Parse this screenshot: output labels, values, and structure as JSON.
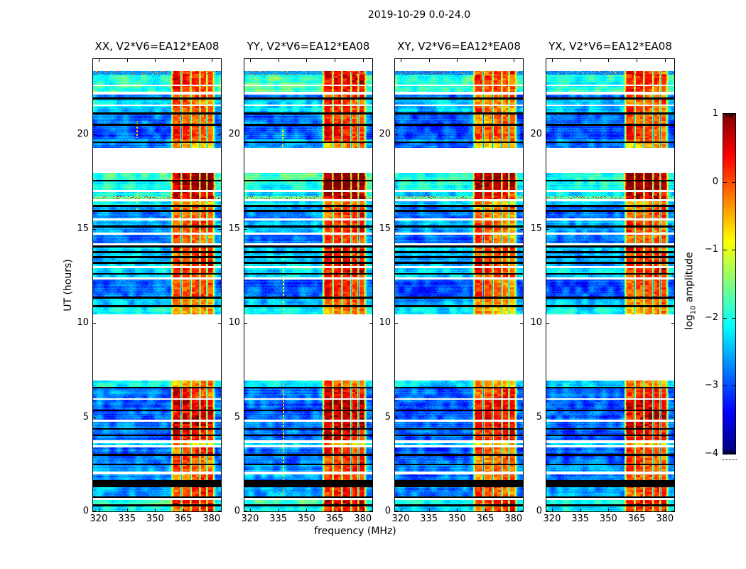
{
  "chart_data": {
    "type": "heatmap",
    "title": "2019-10-29 0.0-24.0",
    "xlabel": "frequency (MHz)",
    "ylabel": "UT (hours)",
    "xlim": [
      317,
      385
    ],
    "ylim": [
      0,
      24
    ],
    "xticks": [
      320,
      335,
      350,
      365,
      380
    ],
    "yticks": [
      0,
      5,
      10,
      15,
      20
    ],
    "grid": false,
    "colorbar": {
      "label_pre": "log",
      "label_sub": "10",
      "label_post": " amplitude",
      "vmin": -4,
      "vmax": 1,
      "ticks": [
        1,
        0,
        -1,
        -2,
        -3,
        -4
      ],
      "tick_labels": [
        "1",
        "0",
        "−1",
        "−2",
        "−3",
        "−4"
      ],
      "colormap": "jet",
      "top_color": "#800000",
      "bottom_color": "#000080"
    },
    "panels": [
      {
        "title": "XX, V2*V6=EA12*EA08",
        "seed": 11,
        "band_bias": 0.0,
        "bg_bias": 0.0,
        "artifacts": [
          {
            "f": 340.5,
            "t0": 19.8,
            "t1": 20.7,
            "v": -0.6
          },
          {
            "f": 340.5,
            "t0": 15.9,
            "t1": 16.9,
            "v": -1.0
          }
        ]
      },
      {
        "title": "YY, V2*V6=EA12*EA08",
        "seed": 27,
        "band_bias": 0.18,
        "bg_bias": 0.02,
        "artifacts": [
          {
            "f": 337.8,
            "t0": 0.7,
            "t1": 6.9,
            "v": -0.6
          },
          {
            "f": 337.8,
            "t0": 10.5,
            "t1": 13.4,
            "v": -0.9
          },
          {
            "f": 337.5,
            "t0": 19.3,
            "t1": 20.3,
            "v": -0.9
          }
        ]
      },
      {
        "title": "XY, V2*V6=EA12*EA08",
        "seed": 43,
        "band_bias": -0.12,
        "bg_bias": -0.1,
        "artifacts": []
      },
      {
        "title": "YX, V2*V6=EA12*EA08",
        "seed": 59,
        "band_bias": 0.0,
        "bg_bias": -0.08,
        "artifacts": []
      }
    ],
    "rfi_band": {
      "f0": 359.3,
      "f1": 380.9,
      "tail_f1": 382.3,
      "separators": [
        364.0,
        368.9,
        373.8,
        377.6
      ]
    },
    "time_segments_comment": "[t_start_hr, t_end_hr, kind, bg_level, band_level]; kind: d=data, s=speckled data, b=black flagged row, w=white thin gap, g=white data gap; levels are log10 amplitude",
    "time_segments": [
      [
        0.0,
        0.28,
        "d",
        -2.1,
        0.1
      ],
      [
        0.28,
        0.36,
        "b",
        0,
        0
      ],
      [
        0.36,
        0.62,
        "d",
        -1.95,
        0.35
      ],
      [
        0.62,
        0.7,
        "w",
        0,
        0
      ],
      [
        0.7,
        0.78,
        "b",
        0,
        0
      ],
      [
        0.78,
        1.3,
        "d",
        -2.6,
        0.1
      ],
      [
        1.3,
        1.66,
        "b",
        0,
        0
      ],
      [
        1.66,
        1.98,
        "d",
        -2.7,
        -0.1
      ],
      [
        1.98,
        2.12,
        "w",
        0,
        0
      ],
      [
        2.12,
        2.44,
        "d",
        -2.6,
        0.0
      ],
      [
        2.44,
        2.54,
        "b",
        0,
        0
      ],
      [
        2.54,
        2.96,
        "d",
        -2.85,
        -0.05
      ],
      [
        2.96,
        3.06,
        "b",
        0,
        0
      ],
      [
        3.06,
        3.38,
        "d",
        -2.85,
        0.0
      ],
      [
        3.38,
        3.5,
        "w",
        0,
        0
      ],
      [
        3.5,
        3.62,
        "d",
        -2.2,
        -0.5
      ],
      [
        3.62,
        3.76,
        "w",
        0,
        0
      ],
      [
        3.76,
        4.0,
        "d",
        -2.85,
        0.3
      ],
      [
        4.0,
        4.08,
        "b",
        0,
        0
      ],
      [
        4.08,
        4.33,
        "d",
        -2.85,
        0.35
      ],
      [
        4.33,
        4.43,
        "b",
        0,
        0
      ],
      [
        4.43,
        4.74,
        "d",
        -2.8,
        0.45
      ],
      [
        4.74,
        4.88,
        "w",
        0,
        0
      ],
      [
        4.88,
        5.31,
        "d",
        -2.85,
        0.5
      ],
      [
        5.31,
        5.41,
        "b",
        0,
        0
      ],
      [
        5.41,
        5.91,
        "d",
        -2.85,
        0.45
      ],
      [
        5.91,
        6.01,
        "w",
        0,
        0
      ],
      [
        6.01,
        6.51,
        "d",
        -2.8,
        0.2
      ],
      [
        6.51,
        6.61,
        "b",
        0,
        0
      ],
      [
        6.61,
        6.94,
        "d",
        -2.15,
        -0.3
      ],
      [
        6.94,
        10.45,
        "g",
        0,
        0
      ],
      [
        10.45,
        10.83,
        "d",
        -2.1,
        -0.4
      ],
      [
        10.83,
        10.94,
        "b",
        0,
        0
      ],
      [
        10.94,
        11.3,
        "d",
        -2.4,
        -0.2
      ],
      [
        11.3,
        11.41,
        "b",
        0,
        0
      ],
      [
        11.41,
        12.3,
        "d",
        -2.9,
        0.0
      ],
      [
        12.3,
        12.42,
        "w",
        0,
        0
      ],
      [
        12.42,
        12.55,
        "d",
        -2.3,
        0.1
      ],
      [
        12.55,
        12.66,
        "b",
        0,
        0
      ],
      [
        12.66,
        12.9,
        "d",
        -2.2,
        0.25
      ],
      [
        12.9,
        13.02,
        "w",
        0,
        0
      ],
      [
        13.02,
        13.14,
        "d",
        -2.3,
        0.2
      ],
      [
        13.14,
        13.24,
        "b",
        0,
        0
      ],
      [
        13.24,
        13.42,
        "d",
        -2.4,
        0.15
      ],
      [
        13.42,
        13.53,
        "b",
        0,
        0
      ],
      [
        13.53,
        13.7,
        "d",
        -2.4,
        0.1
      ],
      [
        13.7,
        13.81,
        "b",
        0,
        0
      ],
      [
        13.81,
        13.99,
        "d",
        -2.3,
        0.2
      ],
      [
        13.99,
        14.11,
        "b",
        0,
        0
      ],
      [
        14.11,
        14.22,
        "w",
        0,
        0
      ],
      [
        14.22,
        14.68,
        "d",
        -2.8,
        -0.1
      ],
      [
        14.68,
        14.79,
        "w",
        0,
        0
      ],
      [
        14.79,
        15.06,
        "d",
        -2.5,
        0.0
      ],
      [
        15.06,
        15.16,
        "b",
        0,
        0
      ],
      [
        15.16,
        15.45,
        "d",
        -2.4,
        0.0
      ],
      [
        15.45,
        15.56,
        "w",
        0,
        0
      ],
      [
        15.56,
        15.9,
        "d",
        -2.75,
        -0.1
      ],
      [
        15.9,
        16.0,
        "b",
        0,
        0
      ],
      [
        16.0,
        16.16,
        "d",
        -2.7,
        -0.1
      ],
      [
        16.16,
        16.26,
        "b",
        0,
        0
      ],
      [
        16.26,
        16.46,
        "d",
        -2.2,
        -0.4
      ],
      [
        16.46,
        16.55,
        "w",
        0,
        0
      ],
      [
        16.55,
        16.7,
        "s",
        -1.6,
        0.55
      ],
      [
        16.7,
        16.94,
        "d",
        -2.2,
        0.5
      ],
      [
        16.94,
        17.06,
        "w",
        0,
        0
      ],
      [
        17.06,
        17.5,
        "d",
        -2.0,
        0.9
      ],
      [
        17.5,
        17.6,
        "b",
        0,
        0
      ],
      [
        17.6,
        17.95,
        "d",
        -1.9,
        0.88
      ],
      [
        17.95,
        19.3,
        "g",
        0,
        0
      ],
      [
        19.3,
        19.55,
        "d",
        -2.7,
        -0.5
      ],
      [
        19.55,
        19.64,
        "b",
        0,
        0
      ],
      [
        19.64,
        19.72,
        "d",
        -2.4,
        -0.2
      ],
      [
        19.72,
        20.45,
        "d",
        -2.95,
        0.1
      ],
      [
        20.45,
        20.56,
        "b",
        0,
        0
      ],
      [
        20.56,
        21.05,
        "d",
        -2.8,
        -0.1
      ],
      [
        21.05,
        21.16,
        "b",
        0,
        0
      ],
      [
        21.16,
        21.5,
        "d",
        -2.35,
        0.0
      ],
      [
        21.5,
        21.57,
        "w",
        0,
        0
      ],
      [
        21.57,
        21.85,
        "d",
        -2.35,
        -0.1
      ],
      [
        21.85,
        21.96,
        "b",
        0,
        0
      ],
      [
        21.96,
        22.1,
        "d",
        -2.75,
        -0.1
      ],
      [
        22.1,
        22.25,
        "w",
        0,
        0
      ],
      [
        22.25,
        22.58,
        "d",
        -1.85,
        0.15
      ],
      [
        22.58,
        22.64,
        "w",
        0,
        0
      ],
      [
        22.64,
        23.18,
        "d",
        -1.9,
        0.25
      ],
      [
        23.18,
        23.36,
        "s",
        -2.6,
        0.15
      ],
      [
        23.36,
        24.0,
        "g",
        0,
        0
      ]
    ]
  }
}
